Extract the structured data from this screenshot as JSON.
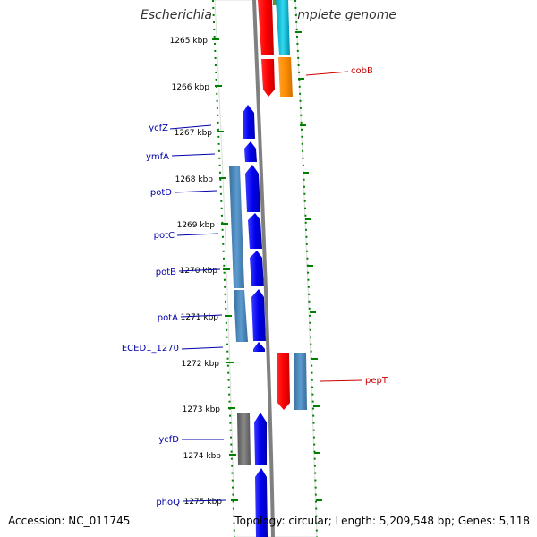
{
  "title": "Escherichia coli ED1a, complete genome",
  "footer": {
    "accession": "Accession: NC_011745",
    "topology": "Topology: circular; Length: 5,209,548 bp; Genes: 5,118"
  },
  "colors": {
    "blue": "#0000ee",
    "steel": "#4682b4",
    "red": "#ff0000",
    "orange": "#ff8c00",
    "cyan": "#00bcd4",
    "olive": "#6b8e23",
    "gray": "#6e6e6e",
    "ruler": "#008000",
    "label_blue": "#0000aa",
    "label_red": "#cc0000"
  },
  "ticks": [
    "1265 kbp",
    "1266 kbp",
    "1267 kbp",
    "1268 kbp",
    "1269 kbp",
    "1270 kbp",
    "1271 kbp",
    "1272 kbp",
    "1273 kbp",
    "1274 kbp",
    "1275 kbp"
  ],
  "gene_labels": [
    {
      "text": "cobB",
      "side": "right",
      "color": "label_red"
    },
    {
      "text": "ycfZ",
      "side": "left",
      "color": "label_blue"
    },
    {
      "text": "ymfA",
      "side": "left",
      "color": "label_blue"
    },
    {
      "text": "potD",
      "side": "left",
      "color": "label_blue"
    },
    {
      "text": "potC",
      "side": "left",
      "color": "label_blue"
    },
    {
      "text": "potB",
      "side": "left",
      "color": "label_blue"
    },
    {
      "text": "potA",
      "side": "left",
      "color": "label_blue"
    },
    {
      "text": "ECED1_1270",
      "side": "left",
      "color": "label_blue"
    },
    {
      "text": "pepT",
      "side": "right",
      "color": "label_red"
    },
    {
      "text": "ycfD",
      "side": "left",
      "color": "label_blue"
    },
    {
      "text": "phoQ",
      "side": "left",
      "color": "label_blue"
    }
  ]
}
